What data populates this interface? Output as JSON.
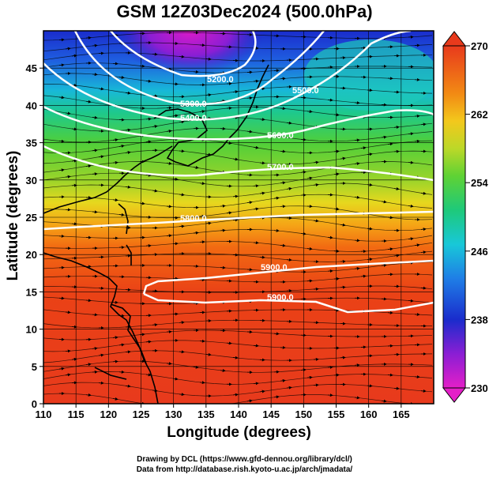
{
  "title": "GSM 12Z03Dec2024 (500.0hPa)",
  "chart_data": {
    "type": "heatmap",
    "xlabel": "Longitude (degrees)",
    "ylabel": "Latitude  (degrees)",
    "xlim": [
      110,
      170
    ],
    "ylim": [
      0,
      50
    ],
    "x_ticks": [
      "110",
      "115",
      "120",
      "125",
      "130",
      "135",
      "140",
      "145",
      "150",
      "155",
      "160",
      "165"
    ],
    "y_ticks": [
      "0",
      "5",
      "10",
      "15",
      "20",
      "25",
      "30",
      "35",
      "40",
      "45"
    ],
    "colorbar": {
      "min": 230,
      "max": 270,
      "tick_labels": [
        "230",
        "238",
        "246",
        "254",
        "262",
        "270"
      ]
    },
    "contour_labels": [
      "5200.0",
      "5300.0",
      "5400.0",
      "5500.0",
      "5600.0",
      "5700.0",
      "5800.0",
      "5900.0",
      "5900.0"
    ]
  },
  "credits": {
    "line1": "Drawing by DCL (https://www.gfd-dennou.org/library/dcl/)",
    "line2": "Data from http://database.rish.kyoto-u.ac.jp/arch/jmadata/"
  }
}
